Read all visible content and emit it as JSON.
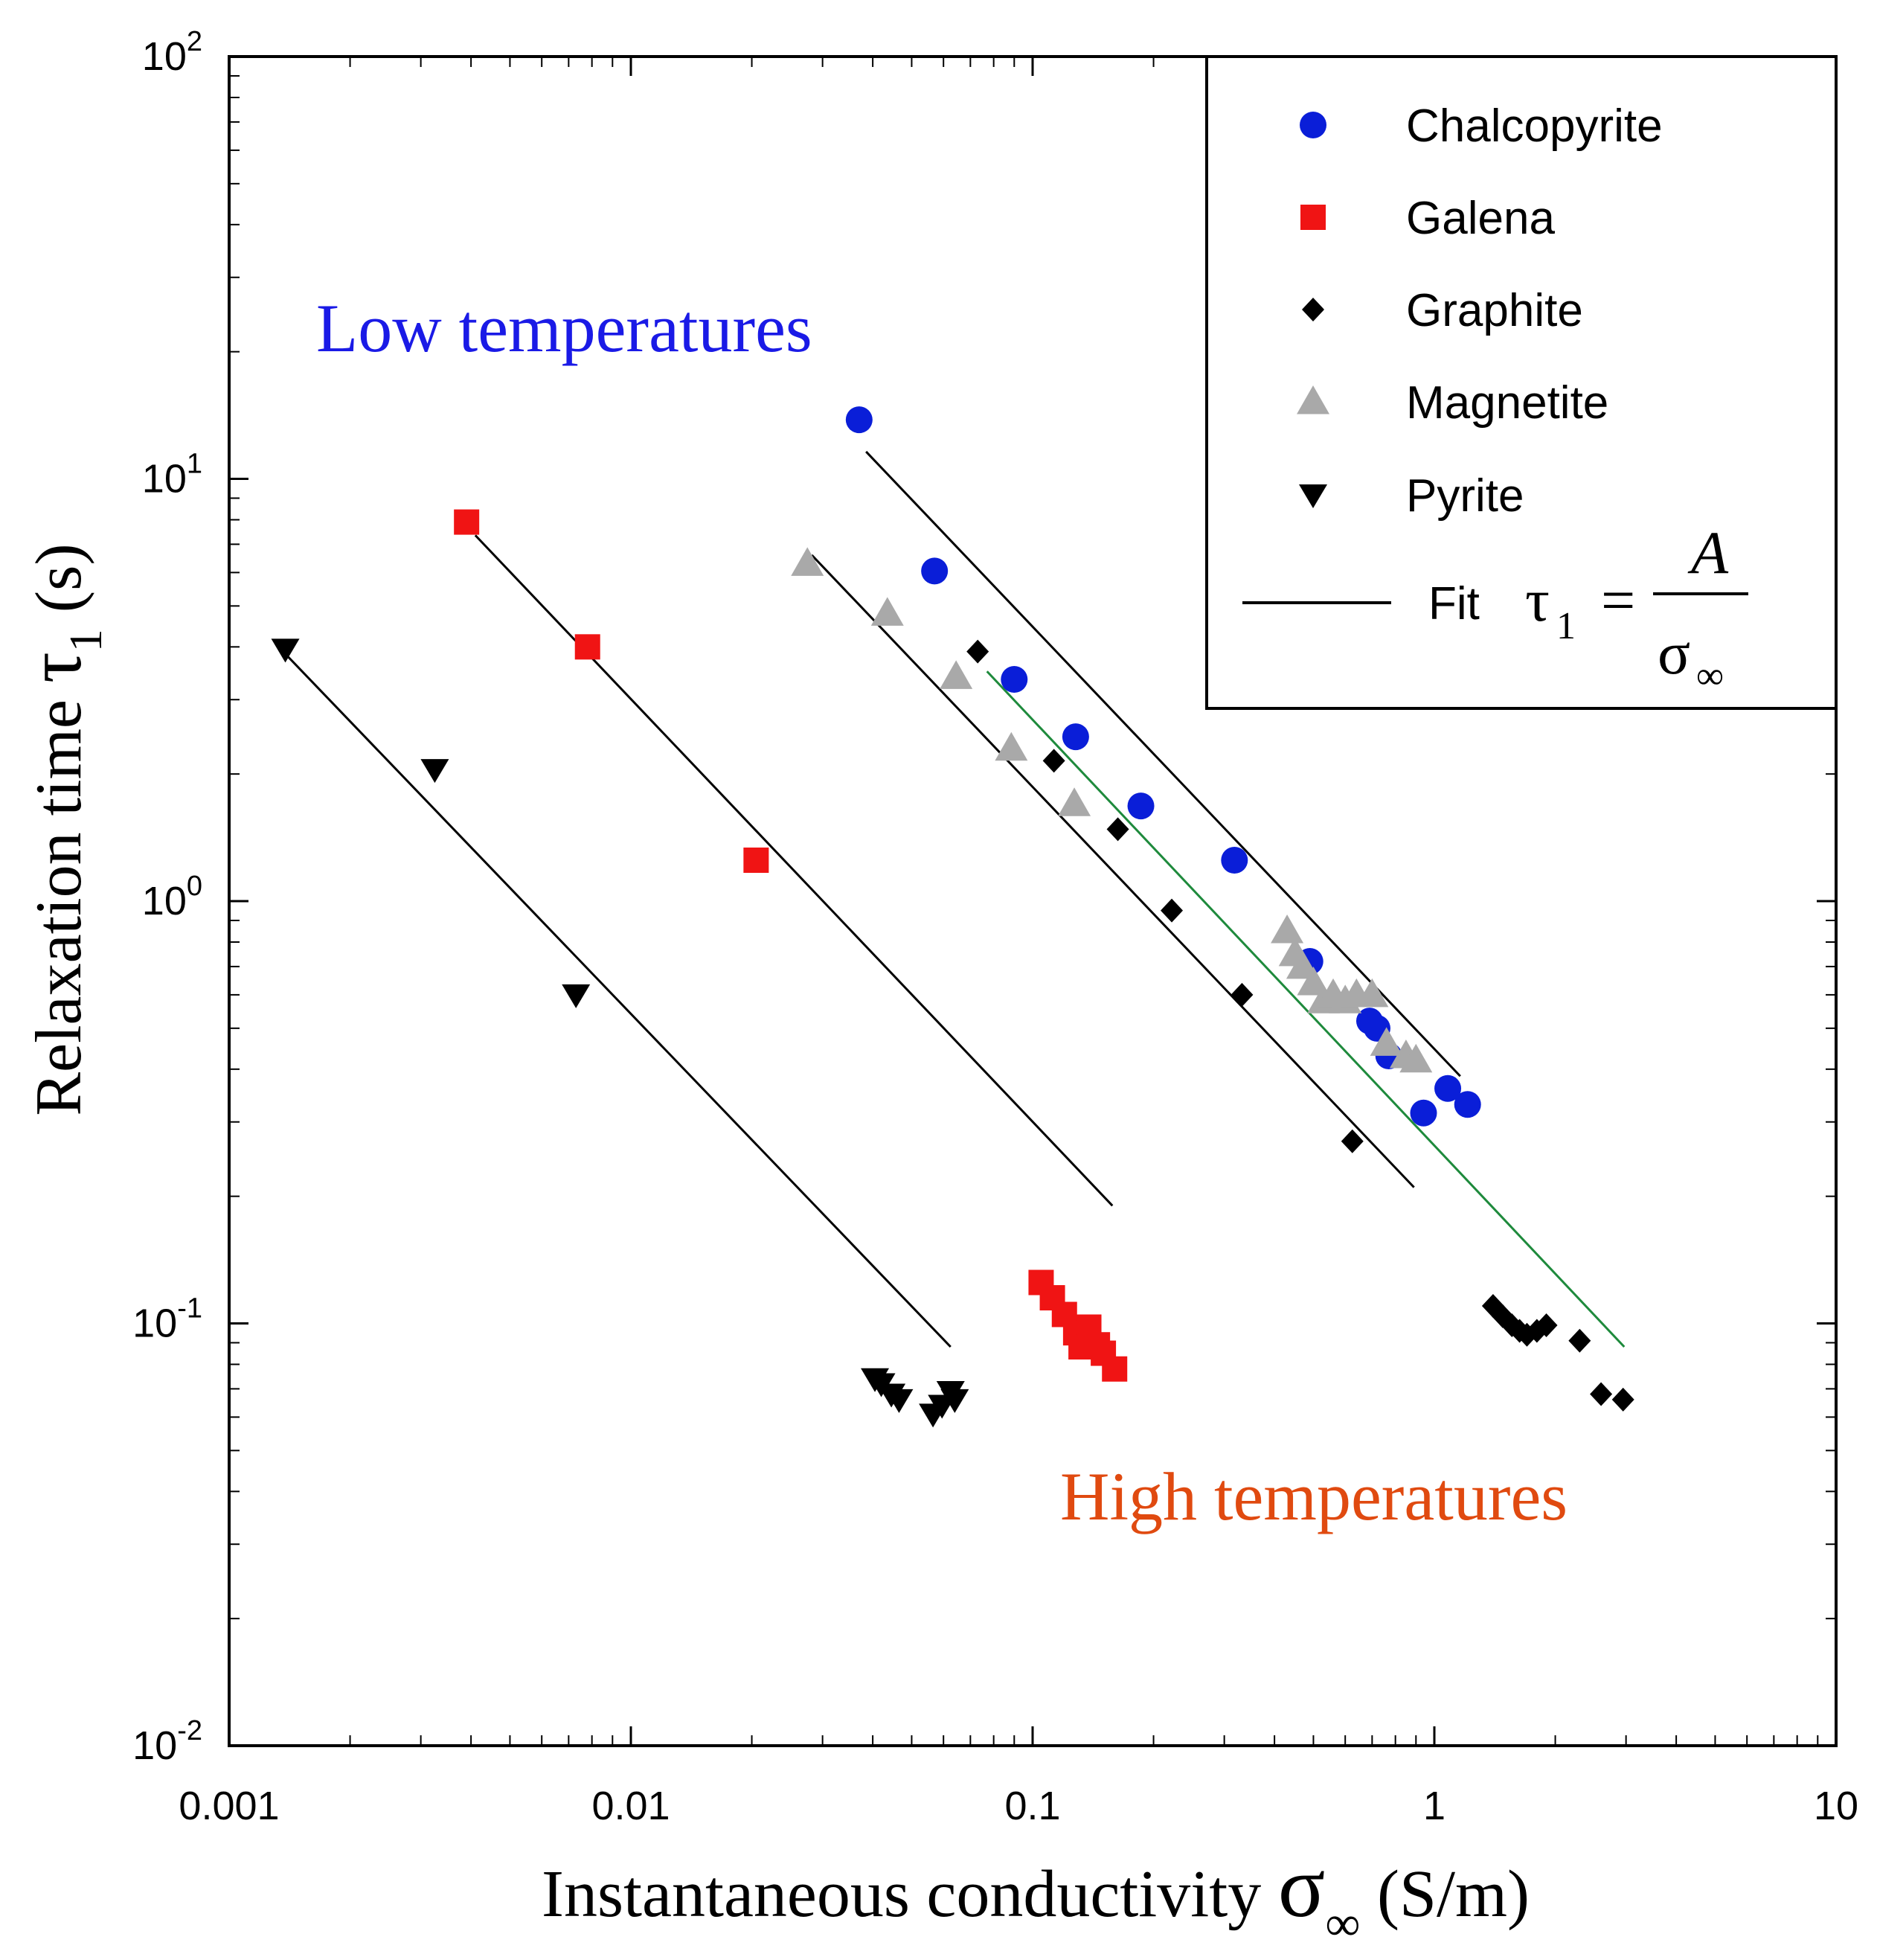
{
  "chart_data": {
    "type": "scatter",
    "xscale": "log",
    "yscale": "log",
    "xlim": [
      0.001,
      10
    ],
    "ylim": [
      0.01,
      100
    ],
    "x_ticks": [
      {
        "value": 0.001,
        "label": "0.001"
      },
      {
        "value": 0.01,
        "label": "0.01"
      },
      {
        "value": 0.1,
        "label": "0.1"
      },
      {
        "value": 1,
        "label": "1"
      },
      {
        "value": 10,
        "label": "10"
      }
    ],
    "y_ticks": [
      {
        "value": 0.01,
        "base": "10",
        "exp": "-2"
      },
      {
        "value": 0.1,
        "base": "10",
        "exp": "-1"
      },
      {
        "value": 1,
        "base": "10",
        "exp": "0"
      },
      {
        "value": 10,
        "base": "10",
        "exp": "1"
      },
      {
        "value": 100,
        "base": "10",
        "exp": "2"
      }
    ],
    "xlabel": {
      "text": "Instantaneous conductivity ",
      "symbol": "σ",
      "sub": "∞",
      "unit": " (S/m)"
    },
    "ylabel": {
      "text": "Relaxation time ",
      "symbol": "τ",
      "sub": "1",
      "unit": " (s)"
    },
    "annotations": {
      "low": {
        "text": "Low temperatures",
        "color": "#1a1ae6"
      },
      "high": {
        "text": "High temperatures",
        "color": "#e04a10"
      }
    },
    "legend": {
      "position": "top-right",
      "fit_label": "Fit",
      "formula": {
        "lhs": "τ",
        "lhs_sub": "1",
        "eq": "=",
        "num": "A",
        "den": "σ",
        "den_sub": "∞"
      }
    },
    "series": [
      {
        "name": "Chalcopyrite",
        "marker": "circle",
        "color": "#0a1ed8",
        "x": [
          0.037,
          0.057,
          0.09,
          0.128,
          0.186,
          0.318,
          0.49,
          0.69,
          0.72,
          0.77,
          0.94,
          1.08,
          1.21
        ],
        "y": [
          13.8,
          6.05,
          3.35,
          2.45,
          1.68,
          1.25,
          0.72,
          0.52,
          0.5,
          0.43,
          0.315,
          0.36,
          0.33
        ]
      },
      {
        "name": "Galena",
        "marker": "square",
        "color": "#f01414",
        "x": [
          0.0039,
          0.0078,
          0.0205,
          0.105,
          0.112,
          0.12,
          0.128,
          0.132,
          0.138,
          0.145,
          0.15,
          0.16
        ],
        "y": [
          7.9,
          4.0,
          1.25,
          0.125,
          0.115,
          0.105,
          0.095,
          0.088,
          0.098,
          0.089,
          0.085,
          0.078
        ]
      },
      {
        "name": "Graphite",
        "marker": "diamond",
        "color": "#000000",
        "x": [
          0.073,
          0.113,
          0.163,
          0.222,
          0.332,
          0.625,
          1.4,
          1.48,
          1.56,
          1.63,
          1.7,
          1.8,
          1.9,
          2.3,
          2.6,
          2.95
        ],
        "y": [
          3.9,
          2.15,
          1.48,
          0.95,
          0.6,
          0.27,
          0.11,
          0.104,
          0.099,
          0.096,
          0.094,
          0.096,
          0.099,
          0.091,
          0.068,
          0.066
        ]
      },
      {
        "name": "Magnetite",
        "marker": "triangle-up",
        "color": "#a9a9a9",
        "x": [
          0.0275,
          0.0435,
          0.0645,
          0.0885,
          0.127,
          0.43,
          0.45,
          0.47,
          0.5,
          0.53,
          0.56,
          0.6,
          0.64,
          0.7,
          0.76,
          0.85,
          0.9
        ],
        "y": [
          6.3,
          4.8,
          3.4,
          2.3,
          1.7,
          0.85,
          0.75,
          0.7,
          0.64,
          0.58,
          0.6,
          0.58,
          0.6,
          0.6,
          0.46,
          0.43,
          0.42
        ]
      },
      {
        "name": "Pyrite",
        "marker": "triangle-down",
        "color": "#000000",
        "x": [
          0.00138,
          0.00325,
          0.0073,
          0.0405,
          0.042,
          0.0445,
          0.0465,
          0.0565,
          0.0595,
          0.0625,
          0.064
        ],
        "y": [
          3.95,
          2.05,
          0.6,
          0.074,
          0.072,
          0.068,
          0.066,
          0.061,
          0.064,
          0.069,
          0.066
        ]
      }
    ],
    "fits": [
      {
        "name": "Fit Pyrite",
        "color": "#000000",
        "x": [
          0.00138,
          0.0625
        ],
        "y": [
          3.85,
          0.088
        ]
      },
      {
        "name": "Fit Galena",
        "color": "#000000",
        "x": [
          0.0041,
          0.158
        ],
        "y": [
          7.35,
          0.19
        ]
      },
      {
        "name": "Fit Magnetite",
        "color": "#000000",
        "x": [
          0.0282,
          0.89
        ],
        "y": [
          6.6,
          0.21
        ]
      },
      {
        "name": "Fit Chalcopyrite",
        "color": "#000000",
        "x": [
          0.0385,
          1.16
        ],
        "y": [
          11.6,
          0.385
        ]
      },
      {
        "name": "Fit Graphite",
        "color": "#1e8a3c",
        "x": [
          0.077,
          2.97
        ],
        "y": [
          3.5,
          0.088
        ]
      }
    ]
  }
}
